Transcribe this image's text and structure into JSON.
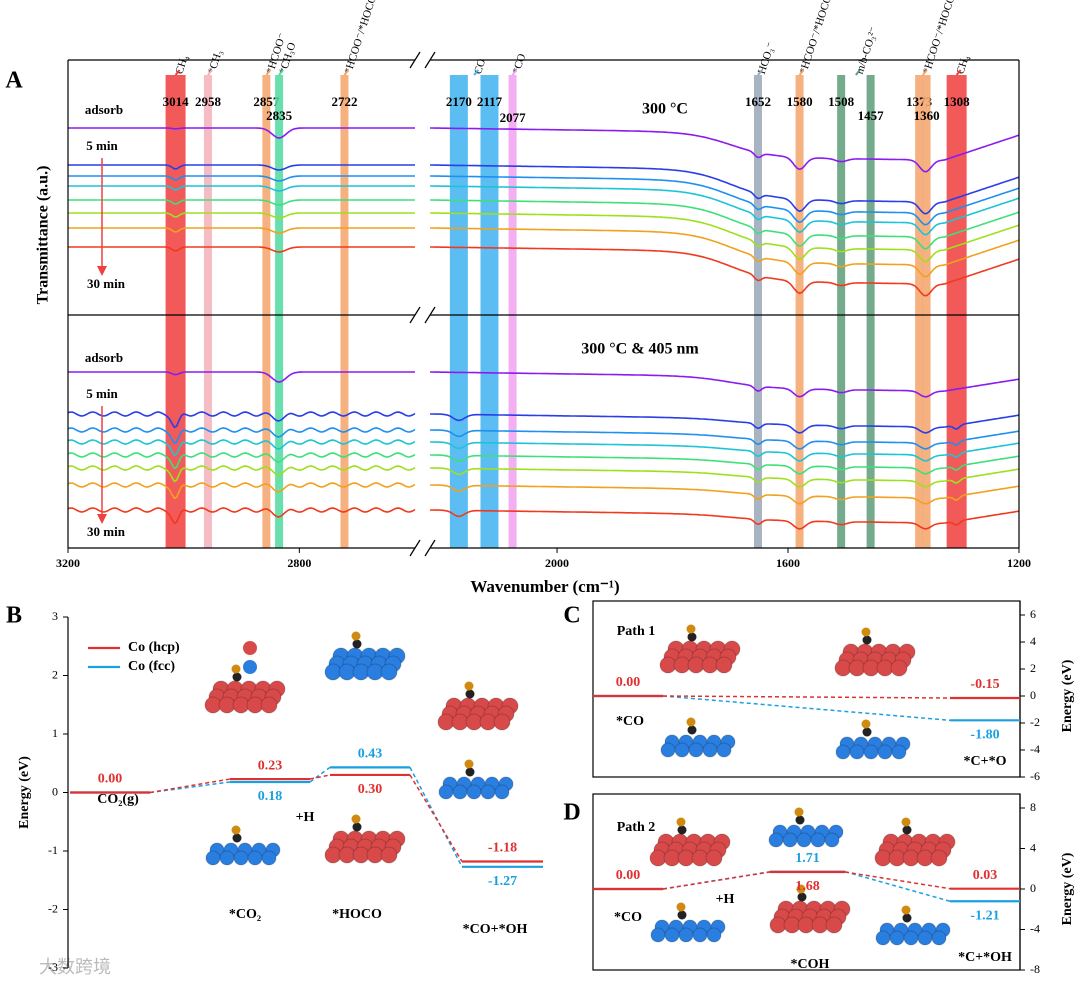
{
  "chart_data": [
    {
      "type": "spectra",
      "label": "A",
      "ylabel": "Transmittance (a.u.)",
      "xlabel": "Wavenumber (cm⁻¹)",
      "xlim": [
        3200,
        1200
      ],
      "x_break": [
        2600,
        2220
      ],
      "xticks": [
        3200,
        2800,
        2000,
        1600,
        1200
      ],
      "bands": [
        {
          "wavenumber": 3014,
          "color": "#f03c3c"
        },
        {
          "wavenumber": 2958,
          "color": "#f4b0b8"
        },
        {
          "wavenumber": 2857,
          "color": "#f5a36a"
        },
        {
          "wavenumber": 2835,
          "color": "#4fd9a0"
        },
        {
          "wavenumber": 2722,
          "color": "#f5a36a"
        },
        {
          "wavenumber": 2170,
          "color": "#3fb2f0"
        },
        {
          "wavenumber": 2117,
          "color": "#3fb2f0"
        },
        {
          "wavenumber": 2077,
          "color": "#f2a0f0"
        },
        {
          "wavenumber": 1652,
          "color": "#9aa7b8"
        },
        {
          "wavenumber": 1580,
          "color": "#f5a36a"
        },
        {
          "wavenumber": 1508,
          "color": "#5c9c78"
        },
        {
          "wavenumber": 1457,
          "color": "#5c9c78"
        },
        {
          "wavenumber": 1373,
          "color": "#f5a36a"
        },
        {
          "wavenumber": 1360,
          "color": "#f5a36a"
        },
        {
          "wavenumber": 1308,
          "color": "#f03c3c"
        }
      ],
      "species": [
        "CH₄",
        "*CH₃",
        "*HCOO⁻",
        "*CH₃O",
        "*HCOO⁻/*HOCO⁻",
        "CO",
        "*CO",
        "HCO₃⁻",
        "*HCOO⁻/*HOCO⁻",
        "m/b-CO₃²⁻",
        "*HCOO⁻/*HOCO⁻",
        "CH₄"
      ],
      "subpanels": [
        {
          "title": "300 °C",
          "first": "adsorb",
          "start": "5 min",
          "end": "30 min"
        },
        {
          "title": "300 °C & 405 nm",
          "first": "adsorb",
          "start": "5 min",
          "end": "30 min"
        }
      ],
      "spectrum_colors": [
        "#8a1cf0",
        "#2a3ee8",
        "#1e90f0",
        "#1cc4d8",
        "#3ee07a",
        "#9ee01e",
        "#f0a21e",
        "#f03a1e"
      ],
      "watermark": "大数跨境"
    },
    {
      "type": "energy",
      "label": "B",
      "ylabel": "Energy (eV)",
      "ylim": [
        -3,
        3
      ],
      "yticks": [
        -3,
        -2,
        -1,
        0,
        1,
        2,
        3
      ],
      "categories": [
        "CO₂(g)",
        "*CO₂",
        "*HOCO",
        "*CO+*OH"
      ],
      "annotation": "+H",
      "series": [
        {
          "name": "Co (hcp)",
          "color": "#e03030",
          "values": [
            0,
            0.23,
            0.3,
            -1.18
          ],
          "value_labels": [
            "0.00",
            "0.23",
            "0.30",
            "-1.18"
          ]
        },
        {
          "name": "Co (fcc)",
          "color": "#1aa0e0",
          "values": [
            0,
            0.18,
            0.43,
            -1.27
          ],
          "value_labels": [
            null,
            "0.18",
            "0.43",
            "-1.27"
          ]
        }
      ]
    },
    {
      "type": "energy",
      "label": "C",
      "title": "Path 1",
      "ylabel": "Energy (eV)",
      "ylim": [
        -6,
        6
      ],
      "yticks": [
        -6,
        -4,
        -2,
        0,
        2,
        4,
        6
      ],
      "categories": [
        "*CO",
        "*C+*O"
      ],
      "series": [
        {
          "color": "#e03030",
          "values": [
            0,
            -0.15
          ],
          "value_labels": [
            "0.00",
            "-0.15"
          ]
        },
        {
          "color": "#1aa0e0",
          "values": [
            0,
            -1.8
          ],
          "value_labels": [
            null,
            "-1.80"
          ]
        }
      ]
    },
    {
      "type": "energy",
      "label": "D",
      "title": "Path 2",
      "ylabel": "Energy (eV)",
      "ylim": [
        -8,
        8
      ],
      "yticks": [
        -8,
        -4,
        0,
        4,
        8
      ],
      "categories": [
        "*CO",
        "*COH",
        "*C+*OH"
      ],
      "annotation": "+H",
      "series": [
        {
          "color": "#e03030",
          "values": [
            0,
            1.68,
            0.03
          ],
          "value_labels": [
            "0.00",
            "1.68",
            "0.03"
          ]
        },
        {
          "color": "#1aa0e0",
          "values": [
            0,
            1.71,
            -1.21
          ],
          "value_labels": [
            null,
            "1.71",
            "-1.21"
          ]
        }
      ]
    }
  ]
}
